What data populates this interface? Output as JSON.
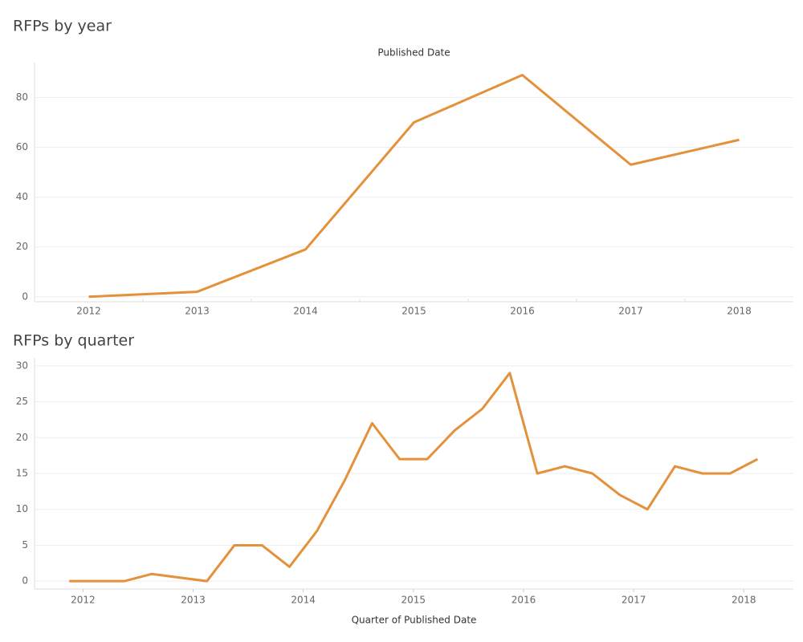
{
  "chart_data": [
    {
      "type": "line",
      "title": "RFPs by year",
      "x_label": "Published Date",
      "categories": [
        "2012",
        "2013",
        "2014",
        "2015",
        "2016",
        "2017",
        "2018"
      ],
      "series": [
        {
          "name": null,
          "color": "#e3913a",
          "values": [
            0,
            2,
            19,
            70,
            89,
            53,
            63
          ]
        }
      ],
      "ylim": [
        -2,
        94
      ],
      "yticks": [
        0,
        20,
        40,
        60,
        80
      ],
      "grid": true
    },
    {
      "type": "line",
      "title": "RFPs by quarter",
      "x_label": "Quarter of Published Date",
      "x": [
        2011.875,
        2012.125,
        2012.375,
        2012.625,
        2013.125,
        2013.375,
        2013.625,
        2013.875,
        2014.125,
        2014.375,
        2014.625,
        2014.875,
        2015.125,
        2015.375,
        2015.625,
        2015.875,
        2016.125,
        2016.375,
        2016.625,
        2016.875,
        2017.125,
        2017.375,
        2017.625,
        2017.875,
        2018.125
      ],
      "series": [
        {
          "name": null,
          "color": "#e3913a",
          "values": [
            0,
            0,
            0,
            1,
            0,
            5,
            5,
            2,
            7,
            14,
            22,
            17,
            17,
            21,
            24,
            29,
            15,
            16,
            15,
            12,
            10,
            16,
            15,
            15,
            17
          ]
        }
      ],
      "xlim": [
        2011.56,
        2018.45
      ],
      "xticks": [
        2012,
        2013,
        2014,
        2015,
        2016,
        2017,
        2018
      ],
      "ylim": [
        -1.1,
        31.1
      ],
      "yticks": [
        0,
        5,
        10,
        15,
        20,
        25,
        30
      ],
      "grid": true
    }
  ]
}
